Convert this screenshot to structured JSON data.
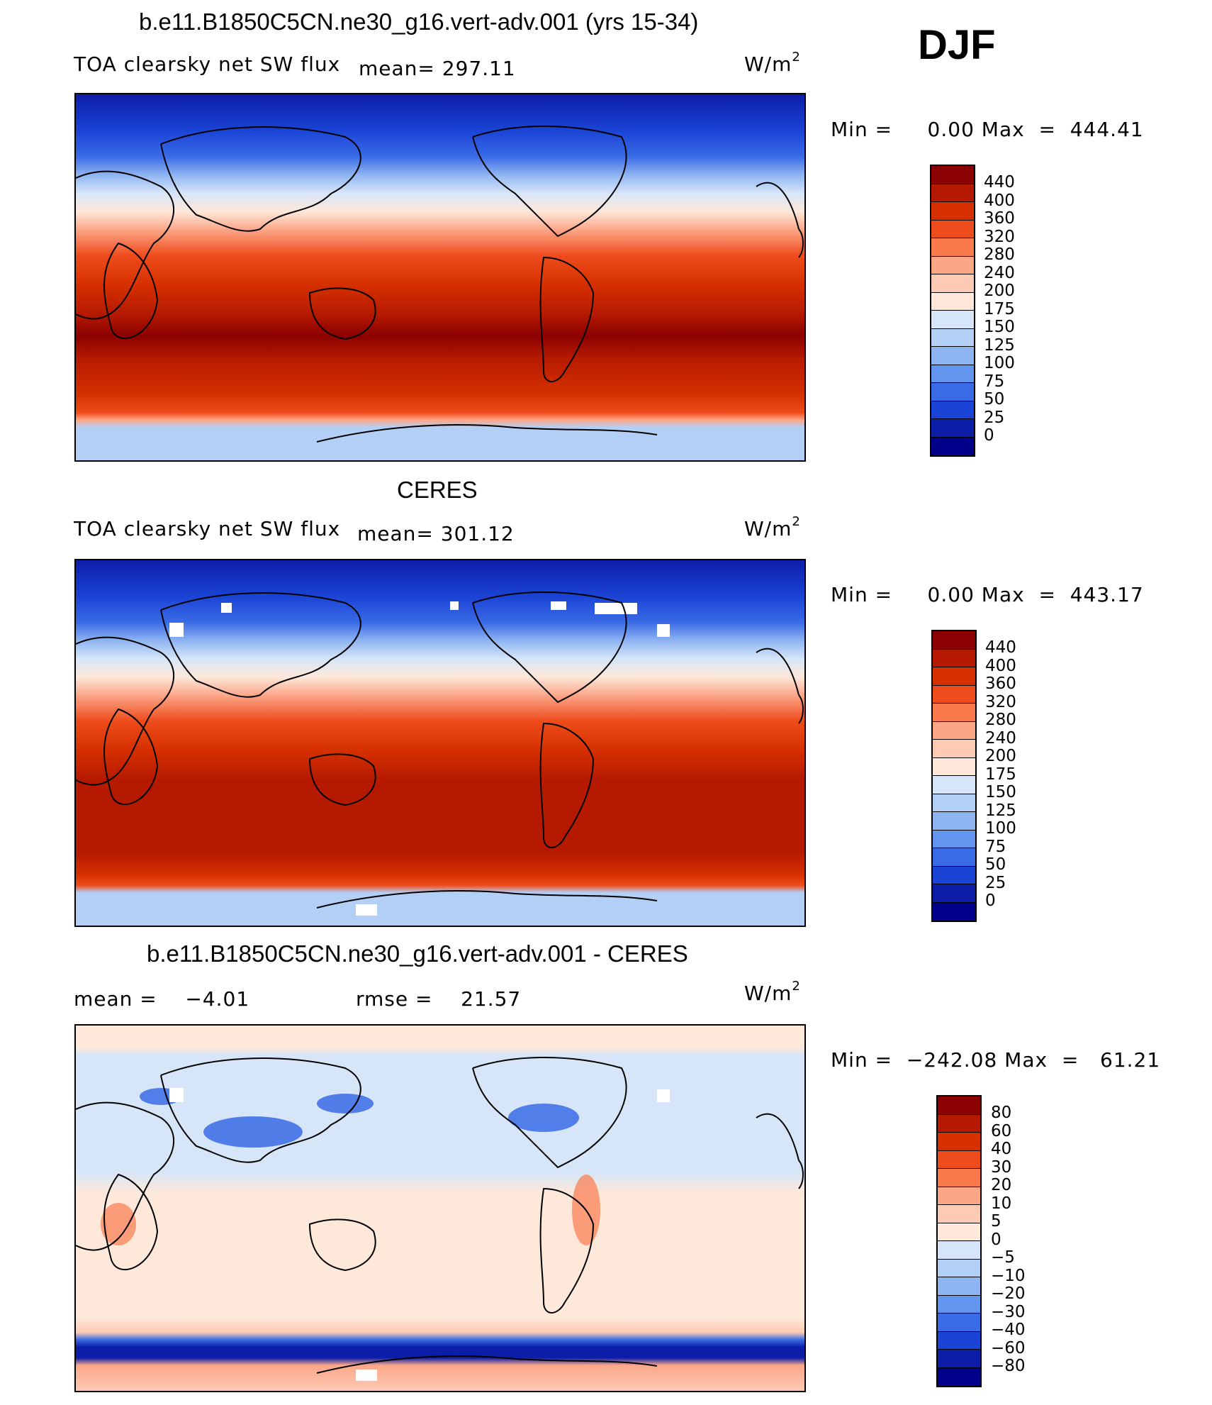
{
  "header": {
    "season": "DJF"
  },
  "panels": [
    {
      "title": "b.e11.B1850C5CN.ne30_g16.vert-adv.001 (yrs 15-34)",
      "left_label": "TOA clearsky net SW flux",
      "mean_label": "mean= 297.11",
      "units": "W/m",
      "units_sup": "2",
      "minmax": "Min =     0.00 Max  =  444.41",
      "colorbar": {
        "labels": [
          "440",
          "400",
          "360",
          "320",
          "280",
          "240",
          "200",
          "175",
          "150",
          "125",
          "100",
          "75",
          "50",
          "25",
          "0"
        ],
        "colors": [
          "#8b0000",
          "#b51a00",
          "#d63000",
          "#ee4c1c",
          "#fa7a4e",
          "#fca688",
          "#fdcbb4",
          "#fde8da",
          "#d6e6f8",
          "#b4cff5",
          "#8fb4f2",
          "#6395ef",
          "#3a6be6",
          "#1b44d6",
          "#0c1ea8",
          "#00008a"
        ]
      }
    },
    {
      "title": "CERES",
      "left_label": "TOA clearsky net SW flux",
      "mean_label": "mean= 301.12",
      "units": "W/m",
      "units_sup": "2",
      "minmax": "Min =     0.00 Max  =  443.17",
      "colorbar": {
        "labels": [
          "440",
          "400",
          "360",
          "320",
          "280",
          "240",
          "200",
          "175",
          "150",
          "125",
          "100",
          "75",
          "50",
          "25",
          "0"
        ],
        "colors": [
          "#8b0000",
          "#b51a00",
          "#d63000",
          "#ee4c1c",
          "#fa7a4e",
          "#fca688",
          "#fdcbb4",
          "#fde8da",
          "#d6e6f8",
          "#b4cff5",
          "#8fb4f2",
          "#6395ef",
          "#3a6be6",
          "#1b44d6",
          "#0c1ea8",
          "#00008a"
        ]
      }
    },
    {
      "title": "b.e11.B1850C5CN.ne30_g16.vert-adv.001 - CERES",
      "left_label": "mean =    −4.01",
      "mean_label": "rmse =    21.57",
      "units": "W/m",
      "units_sup": "2",
      "minmax": "Min =  −242.08 Max  =   61.21",
      "colorbar": {
        "labels": [
          "80",
          "60",
          "40",
          "30",
          "20",
          "10",
          "5",
          "0",
          "−5",
          "−10",
          "−20",
          "−30",
          "−40",
          "−60",
          "−80"
        ],
        "colors": [
          "#8b0000",
          "#b51a00",
          "#d63000",
          "#ee4c1c",
          "#fa7a4e",
          "#fca688",
          "#fdcbb4",
          "#fde8da",
          "#d6e6f8",
          "#b4cff5",
          "#8fb4f2",
          "#6395ef",
          "#3a6be6",
          "#1b44d6",
          "#0c1ea8",
          "#00008a"
        ]
      }
    }
  ]
}
